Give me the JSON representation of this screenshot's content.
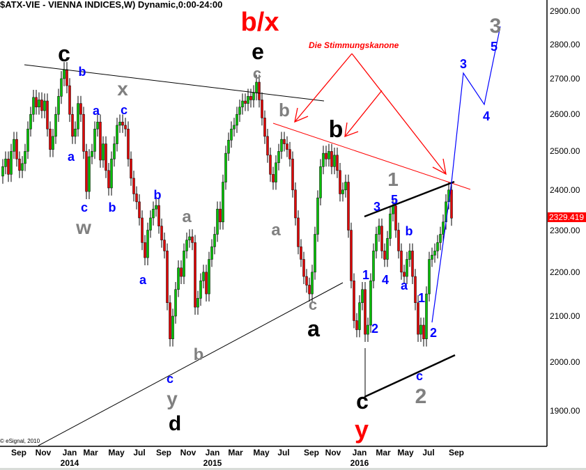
{
  "title": "$ATX-VIE - VIENNA INDICES,W) Dynamic,0:00-24:00",
  "copyright": "© eSignal, 2010",
  "chart_data": {
    "type": "candlestick",
    "interval": "weekly",
    "scale": "log",
    "ylim": [
      1820,
      2960
    ],
    "colors": {
      "up": "#00c000",
      "down": "#e00000",
      "last_price_bg": "#ff0000"
    },
    "closes": [
      2460,
      2480,
      2440,
      2500,
      2532,
      2480,
      2450,
      2468,
      2500,
      2560,
      2600,
      2647,
      2620,
      2640,
      2610,
      2637,
      2560,
      2505,
      2540,
      2600,
      2650,
      2700,
      2726,
      2680,
      2600,
      2540,
      2560,
      2630,
      2600,
      2500,
      2396,
      2486,
      2500,
      2560,
      2579,
      2477,
      2520,
      2450,
      2405,
      2480,
      2520,
      2570,
      2579,
      2570,
      2560,
      2480,
      2430,
      2390,
      2370,
      2330,
      2270,
      2234,
      2300,
      2330,
      2352,
      2361,
      2310,
      2276,
      2250,
      2130,
      2050,
      2100,
      2160,
      2210,
      2190,
      2250,
      2276,
      2284,
      2270,
      2120,
      2140,
      2180,
      2200,
      2150,
      2230,
      2260,
      2290,
      2352,
      2320,
      2420,
      2495,
      2530,
      2560,
      2570,
      2600,
      2620,
      2637,
      2630,
      2650,
      2640,
      2660,
      2690,
      2640,
      2590,
      2540,
      2490,
      2440,
      2420,
      2470,
      2500,
      2532,
      2520,
      2505,
      2480,
      2400,
      2330,
      2260,
      2230,
      2190,
      2170,
      2150,
      2200,
      2290,
      2380,
      2460,
      2495,
      2480,
      2500,
      2460,
      2490,
      2450,
      2390,
      2400,
      2420,
      2300,
      2180,
      2090,
      2070,
      2130,
      2160,
      2060,
      2080,
      2180,
      2250,
      2290,
      2310,
      2250,
      2230,
      2280,
      2340,
      2360,
      2300,
      2250,
      2200,
      2190,
      2230,
      2250,
      2190,
      2130,
      2060,
      2080,
      2050,
      2150,
      2230,
      2240,
      2250,
      2270,
      2290,
      2320,
      2370,
      2400,
      2329.42
    ],
    "last_price": "2329.419",
    "y_ticks": [
      "2900.00",
      "2800.00",
      "2700.00",
      "2600.00",
      "2500.00",
      "2400.00",
      "2300.00",
      "2200.00",
      "2100.00",
      "2000.00",
      "1900.00"
    ],
    "x_ticks": [
      "Sep",
      "Nov",
      "Jan",
      "Mar",
      "May",
      "Jul",
      "Sep",
      "Nov",
      "Jan",
      "Mar",
      "May",
      "Jul",
      "Sep",
      "Nov",
      "Jan",
      "Mar",
      "May",
      "Jul",
      "Sep"
    ],
    "x_years": [
      "2014",
      "2015",
      "2016"
    ],
    "annotation_note": "Die Stimmungskanone",
    "wave_labels": [
      "c",
      "b",
      "x",
      "c",
      "a",
      "a",
      "c",
      "w",
      "b",
      "b",
      "a",
      "a",
      "c",
      "y",
      "d",
      "b",
      "b/x",
      "e",
      "c",
      "b",
      "a",
      "b",
      "c",
      "a",
      "1",
      "5",
      "3",
      "4",
      "1",
      "2",
      "b",
      "a",
      "1",
      "2",
      "c",
      "2",
      "c",
      "y",
      "3",
      "5",
      "3",
      "4"
    ]
  }
}
